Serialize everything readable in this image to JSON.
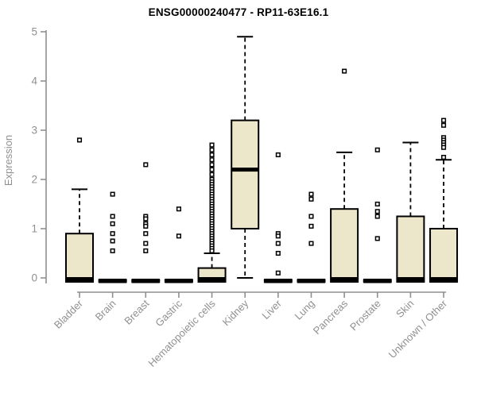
{
  "chart_data": {
    "type": "boxplot",
    "title": "ENSG00000240477 - RP11-63E16.1",
    "ylabel": "Expression",
    "xlabel": "",
    "ylim": [
      0,
      5
    ],
    "yticks": [
      0,
      1,
      2,
      3,
      4,
      5
    ],
    "grid": false,
    "legend": "none",
    "colors": {
      "box_fill": "#ECE7CB",
      "box_stroke": "#000000",
      "median": "#000000",
      "whisker": "#000000",
      "outlier_stroke": "#000000",
      "outlier_fill": "#FFFFFF",
      "axis": "#8F8F8F",
      "tick_label": "#909090",
      "title": "#000000",
      "background": "#FFFFFF"
    },
    "categories": [
      "Bladder",
      "Brain",
      "Breast",
      "Gastric",
      "Hematopoietic cells",
      "Kidney",
      "Liver",
      "Lung",
      "Pancreas",
      "Prostate",
      "Skin",
      "Unknown / Other"
    ],
    "series": [
      {
        "category": "Bladder",
        "low": 0,
        "q1": 0,
        "median": 0,
        "q3": 0.9,
        "high": 1.8,
        "outliers": [
          2.8
        ]
      },
      {
        "category": "Brain",
        "low": 0,
        "q1": 0,
        "median": 0,
        "q3": 0,
        "high": 0,
        "outliers": [
          1.7,
          1.25,
          1.1,
          0.9,
          0.75,
          0.55
        ]
      },
      {
        "category": "Breast",
        "low": 0,
        "q1": 0,
        "median": 0,
        "q3": 0,
        "high": 0,
        "outliers": [
          2.3,
          1.25,
          1.2,
          1.1,
          1.05,
          0.9,
          0.7,
          0.55
        ]
      },
      {
        "category": "Gastric",
        "low": 0,
        "q1": 0,
        "median": 0,
        "q3": 0,
        "high": 0,
        "outliers": [
          1.4,
          0.85
        ]
      },
      {
        "category": "Hematopoietic cells",
        "low": 0,
        "q1": 0,
        "median": 0,
        "q3": 0.2,
        "high": 0.5,
        "outliers": [
          2.7,
          2.6,
          2.5,
          2.4,
          2.3,
          2.2,
          2.1,
          2.0,
          1.95,
          1.9,
          1.85,
          1.8,
          1.75,
          1.7,
          1.65,
          1.6,
          1.55,
          1.5,
          1.45,
          1.4,
          1.35,
          1.3,
          1.25,
          1.2,
          1.15,
          1.1,
          1.05,
          1.0,
          0.95,
          0.9,
          0.85,
          0.8,
          0.75,
          0.7,
          0.65,
          0.6,
          0.55
        ]
      },
      {
        "category": "Kidney",
        "low": 0,
        "q1": 1.0,
        "median": 2.2,
        "q3": 3.2,
        "high": 4.9,
        "outliers": []
      },
      {
        "category": "Liver",
        "low": 0,
        "q1": 0,
        "median": 0,
        "q3": 0,
        "high": 0,
        "outliers": [
          2.5,
          0.9,
          0.85,
          0.7,
          0.5,
          0.1
        ]
      },
      {
        "category": "Lung",
        "low": 0,
        "q1": 0,
        "median": 0,
        "q3": 0,
        "high": 0,
        "outliers": [
          1.7,
          1.6,
          1.25,
          1.05,
          0.7
        ]
      },
      {
        "category": "Pancreas",
        "low": 0,
        "q1": 0,
        "median": 0,
        "q3": 1.4,
        "high": 2.55,
        "outliers": [
          4.2
        ]
      },
      {
        "category": "Prostate",
        "low": 0,
        "q1": 0,
        "median": 0,
        "q3": 0,
        "high": 0,
        "outliers": [
          2.6,
          1.5,
          1.35,
          1.25,
          0.8
        ]
      },
      {
        "category": "Skin",
        "low": 0,
        "q1": 0,
        "median": 0,
        "q3": 1.25,
        "high": 2.75,
        "outliers": []
      },
      {
        "category": "Unknown / Other",
        "low": 0,
        "q1": 0,
        "median": 0,
        "q3": 1.0,
        "high": 2.4,
        "outliers": [
          3.2,
          3.1,
          2.85,
          2.8,
          2.75,
          2.7,
          2.65,
          2.45
        ]
      }
    ]
  }
}
